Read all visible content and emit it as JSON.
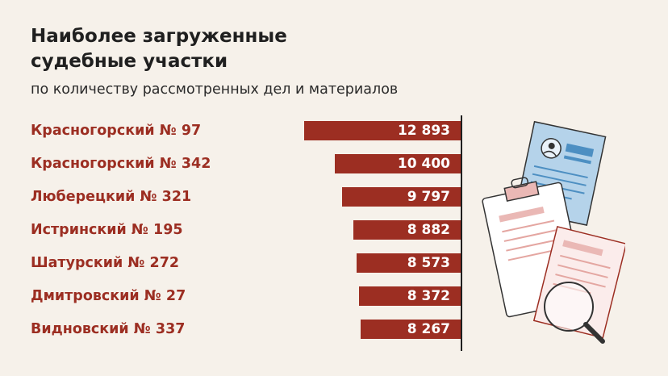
{
  "title_line1": "Наиболее загруженные",
  "title_line2": "судебные участки",
  "subtitle": "по количеству рассмотренных дел и материалов",
  "colors": {
    "bar": "#9c2e22",
    "label": "#9c2e22",
    "background": "#f6f1ea"
  },
  "illustration": "documents-clipboard-magnifier-icon",
  "chart_data": {
    "type": "bar",
    "orientation": "horizontal",
    "categories": [
      "Красногорский № 97",
      "Красногорский № 342",
      "Люберецкий № 321",
      "Истринский № 195",
      "Шатурский № 272",
      "Дмитровский № 27",
      "Видновский № 337"
    ],
    "values": [
      12893,
      10400,
      9797,
      8882,
      8573,
      8372,
      8267
    ],
    "value_labels": [
      "12 893",
      "10 400",
      "9 797",
      "8 882",
      "8 573",
      "8 372",
      "8 267"
    ]
  }
}
